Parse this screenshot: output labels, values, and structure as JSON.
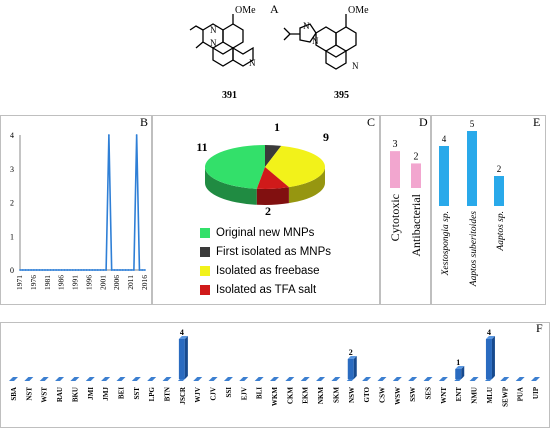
{
  "panels": {
    "A": "A",
    "B": "B",
    "C": "C",
    "D": "D",
    "E": "E",
    "F": "F"
  },
  "structures": [
    {
      "label": "391",
      "substituent": "OMe",
      "ring_n": "N"
    },
    {
      "label": "395",
      "substituent": "OMe",
      "ring_n": "N"
    }
  ],
  "chart_data": [
    {
      "panel": "B",
      "type": "line",
      "x": [
        1971,
        1972,
        1973,
        1974,
        1975,
        1976,
        1977,
        1978,
        1979,
        1980,
        1981,
        1982,
        1983,
        1984,
        1985,
        1986,
        1987,
        1988,
        1989,
        1990,
        1991,
        1992,
        1993,
        1994,
        1995,
        1996,
        1997,
        1998,
        1999,
        2000,
        2001,
        2002,
        2003,
        2004,
        2005,
        2006,
        2007,
        2008,
        2009,
        2010,
        2011,
        2012,
        2013,
        2014,
        2015,
        2016
      ],
      "y": [
        0,
        0,
        0,
        0,
        0,
        0,
        0,
        0,
        0,
        0,
        0,
        0,
        0,
        0,
        0,
        0,
        0,
        0,
        0,
        0,
        0,
        0,
        0,
        0,
        0,
        0,
        0,
        0,
        0,
        0,
        0,
        0,
        4,
        0,
        0,
        0,
        0,
        0,
        0,
        0,
        0,
        0,
        4,
        0,
        0,
        0
      ],
      "xticks": [
        "1971",
        "1976",
        "1981",
        "1986",
        "1991",
        "1996",
        "2001",
        "2006",
        "2011",
        "2016"
      ],
      "yticks": [
        "0",
        "1",
        "2",
        "3",
        "4"
      ],
      "ylim": [
        0,
        4
      ],
      "color": "#2f7fd6"
    },
    {
      "panel": "C",
      "type": "pie",
      "series": [
        {
          "name": "Original new MNPs",
          "value": 11,
          "label": "11",
          "color": "#33e06a"
        },
        {
          "name": "First isolated as MNPs",
          "value": 1,
          "label": "1",
          "color": "#3a3a3a"
        },
        {
          "name": "Isolated as freebase",
          "value": 9,
          "label": "9",
          "color": "#f2f21a"
        },
        {
          "name": "Isolated as TFA salt",
          "value": 2,
          "label": "2",
          "color": "#d01a1a"
        }
      ]
    },
    {
      "panel": "D",
      "type": "bar",
      "categories": [
        "Cytotoxic",
        "Antibacterial"
      ],
      "values": [
        3,
        2
      ],
      "labels": [
        "3",
        "2"
      ],
      "color": "#f2a6cf"
    },
    {
      "panel": "E",
      "type": "bar",
      "categories": [
        "Xestospongia sp.",
        "Aaptos suberitoides",
        "Aaptos sp."
      ],
      "values": [
        4,
        5,
        2
      ],
      "labels": [
        "4",
        "5",
        "2"
      ],
      "color": "#29a9ea"
    },
    {
      "panel": "F",
      "type": "bar",
      "categories": [
        "SBA",
        "NST",
        "WST",
        "RAU",
        "BKU",
        "JMI",
        "JMJ",
        "BEI",
        "SST",
        "LPG",
        "BTN",
        "JSCR",
        "WJV",
        "CJV",
        "SSI",
        "EJV",
        "BLI",
        "WKM",
        "CKM",
        "EKM",
        "NKM",
        "SKM",
        "NSW",
        "GTO",
        "CSW",
        "WSW",
        "SSW",
        "SES",
        "WNT",
        "ENT",
        "NMU",
        "MLU",
        "SEWP",
        "PUA",
        "UIP"
      ],
      "values": [
        0,
        0,
        0,
        0,
        0,
        0,
        0,
        0,
        0,
        0,
        0,
        4,
        0,
        0,
        0,
        0,
        0,
        0,
        0,
        0,
        0,
        0,
        2,
        0,
        0,
        0,
        0,
        0,
        0,
        1,
        0,
        4,
        0,
        0,
        0
      ],
      "labels": [
        "4",
        "2",
        "1",
        "4"
      ],
      "color": "#1f5fae"
    }
  ]
}
